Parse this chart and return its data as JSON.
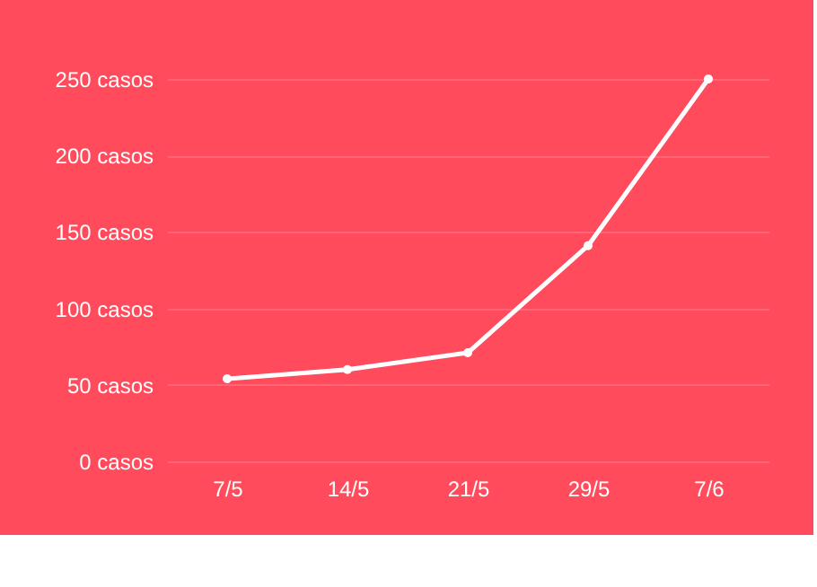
{
  "chart_data": {
    "type": "line",
    "categories": [
      "7/5",
      "14/5",
      "21/5",
      "29/5",
      "7/6"
    ],
    "series": [
      {
        "color": "#ffffff",
        "values": [
          54,
          60,
          71,
          141,
          250
        ]
      }
    ],
    "ylim": [
      0,
      250
    ],
    "yticks": [
      {
        "value": 0,
        "label": "0 casos"
      },
      {
        "value": 50,
        "label": "50 casos"
      },
      {
        "value": 100,
        "label": "100 casos"
      },
      {
        "value": 150,
        "label": "150 casos"
      },
      {
        "value": 200,
        "label": "200 casos"
      },
      {
        "value": 250,
        "label": "250 casos"
      }
    ],
    "grid": "y",
    "marker": "circle",
    "line_style": "solid"
  }
}
